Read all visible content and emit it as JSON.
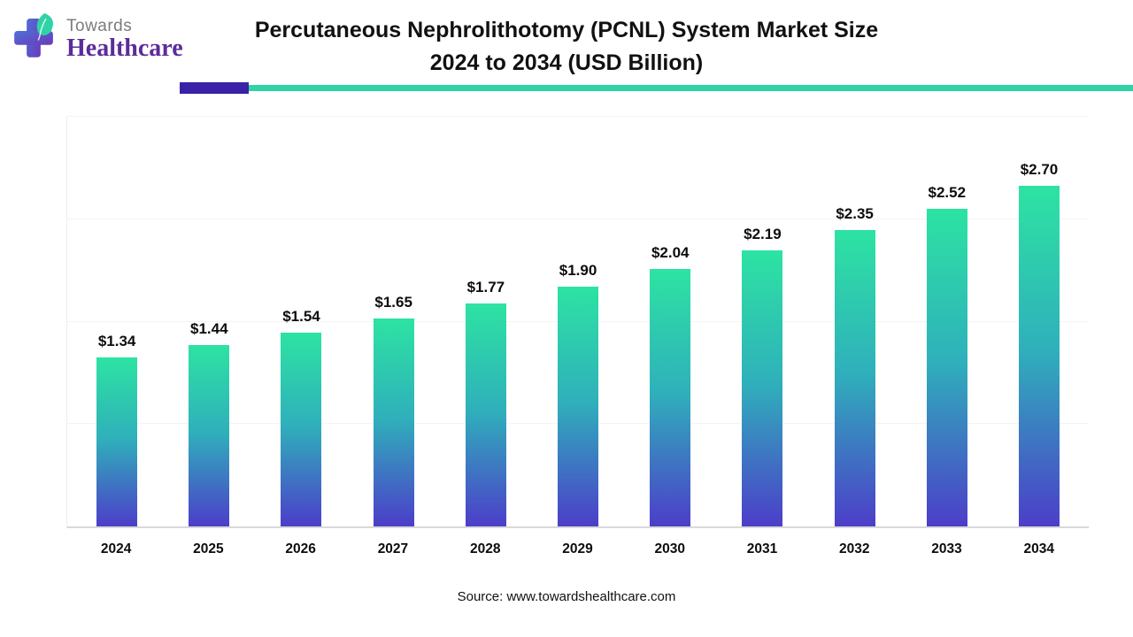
{
  "brand": {
    "name_top": "Towards",
    "name_bottom": "Healthcare",
    "logo_icon": "medical-cross-leaf-icon"
  },
  "header": {
    "title_line1": "Percutaneous Nephrolithotomy (PCNL) System Market Size",
    "title_line2": "2024 to 2034 (USD Billion)"
  },
  "chart_data": {
    "type": "bar",
    "title": "Percutaneous Nephrolithotomy (PCNL) System Market Size 2024 to 2034 (USD Billion)",
    "unit": "USD Billion",
    "categories": [
      "2024",
      "2025",
      "2026",
      "2027",
      "2028",
      "2029",
      "2030",
      "2031",
      "2032",
      "2033",
      "2034"
    ],
    "values": [
      1.34,
      1.44,
      1.54,
      1.65,
      1.77,
      1.9,
      2.04,
      2.19,
      2.35,
      2.52,
      2.7
    ],
    "labels": [
      "$1.34",
      "$1.44",
      "$1.54",
      "$1.65",
      "$1.77",
      "$1.90",
      "$2.04",
      "$2.19",
      "$2.35",
      "$2.52",
      "$2.70"
    ],
    "xlabel": "",
    "ylabel": "",
    "ylim": [
      0,
      3.25
    ],
    "grid": true,
    "legend": "none",
    "bar_color_top": "#2de3a2",
    "bar_color_mid": "#2fb0bb",
    "bar_color_bottom": "#4c3ec9"
  },
  "footer": {
    "source": "Source: www.towardshealthcare.com"
  },
  "colors": {
    "divider_purple": "#3a21a8",
    "divider_teal": "#2fd3a6",
    "brand_gray": "#7c7c7c",
    "brand_purple": "#5c2c9a",
    "title_color": "#111111",
    "gridline": "#f3f3f3"
  }
}
